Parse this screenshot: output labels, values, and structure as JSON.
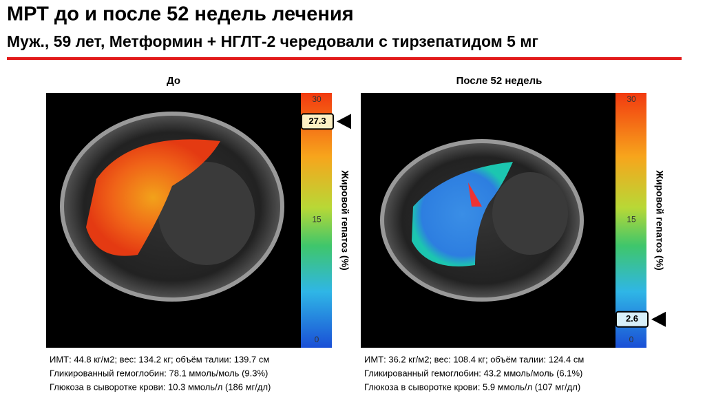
{
  "header": {
    "title": "МРТ до и после 52 недель лечения",
    "subtitle": "Муж., 59 лет, Метформин + НГЛТ-2 чередовали с тирзепатидом 5 мг"
  },
  "scale_label": "Жировой гепатоз (%)",
  "scale": {
    "lim": [
      0,
      30
    ],
    "ticks": [
      30,
      15,
      0
    ]
  },
  "panels": [
    {
      "label": "До",
      "marker": 27.3,
      "stats": [
        "ИМТ: 44.8 кг/м2; вес: 134.2 кг; объём талии: 139.7 см",
        "Гликированный гемоглобин: 78.1 ммоль/моль (9.3%)",
        "Глюкоза в сыворотке крови: 10.3 ммоль/л (186 мг/дл)"
      ]
    },
    {
      "label": "После 52 недель",
      "marker": 2.6,
      "stats": [
        "ИМТ: 36.2 кг/м2; вес: 108.4 кг; объём талии: 124.4 см",
        "Гликированный гемоглобин: 43.2 ммоль/моль (6.1%)",
        "Глюкоза в сыворотке крови: 5.9 ммоль/л (107 мг/дл)"
      ]
    }
  ]
}
